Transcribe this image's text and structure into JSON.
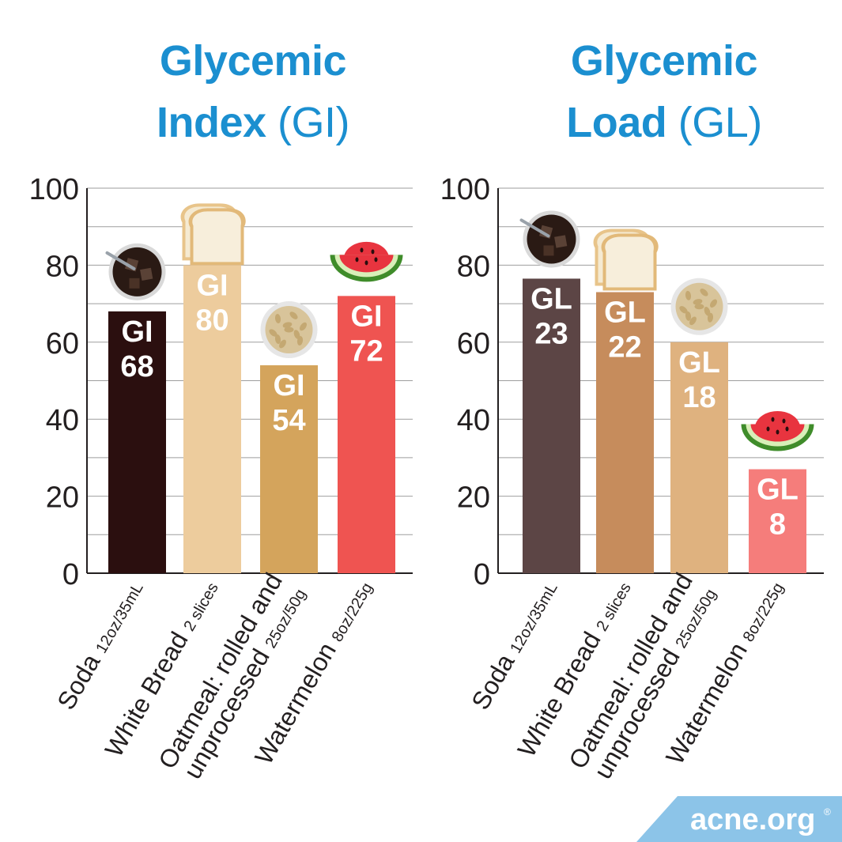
{
  "titles": {
    "left": {
      "bold": "Glycemic",
      "bold2": "Index",
      "light": "(GI)"
    },
    "right": {
      "bold": "Glycemic",
      "bold2": "Load",
      "light": "(GL)"
    }
  },
  "brand": {
    "text": "acne.org",
    "mark": "®",
    "color": "#8cc4e8"
  },
  "chart_data": [
    {
      "type": "bar",
      "title": "Glycemic Index (GI)",
      "ylim": [
        0,
        100
      ],
      "yticks": [
        0,
        20,
        40,
        60,
        80,
        100
      ],
      "grid": true,
      "bar_prefix": "GI",
      "categories": [
        {
          "name": "Soda",
          "serving": "12oz/35mL",
          "icon": "soda-glass-icon"
        },
        {
          "name": "White Bread",
          "serving": "2 slices",
          "icon": "bread-slices-icon"
        },
        {
          "name": "Oatmeal: rolled and",
          "name2": "unprocessed",
          "serving": "25oz/50g",
          "icon": "oatmeal-bowl-icon"
        },
        {
          "name": "Watermelon",
          "serving": "8oz/225g",
          "icon": "watermelon-slice-icon"
        }
      ],
      "values": [
        68,
        80,
        54,
        72
      ],
      "colors": [
        "#2b0f0f",
        "#edcc9d",
        "#d4a45c",
        "#ef5451"
      ]
    },
    {
      "type": "bar",
      "title": "Glycemic Load (GL)",
      "ylim": [
        0,
        100
      ],
      "yticks": [
        0,
        20,
        40,
        60,
        80,
        100
      ],
      "grid": true,
      "bar_prefix": "GL",
      "categories": [
        {
          "name": "Soda",
          "serving": "12oz/35mL",
          "icon": "soda-glass-icon"
        },
        {
          "name": "White Bread",
          "serving": "2 slices",
          "icon": "bread-slices-icon"
        },
        {
          "name": "Oatmeal: rolled and",
          "name2": "unprocessed",
          "serving": "25oz/50g",
          "icon": "oatmeal-bowl-icon"
        },
        {
          "name": "Watermelon",
          "serving": "8oz/225g",
          "icon": "watermelon-slice-icon"
        }
      ],
      "values": [
        23,
        22,
        18,
        8
      ],
      "bar_heights": [
        76.5,
        73,
        60,
        27
      ],
      "colors": [
        "#5c4545",
        "#c68c5c",
        "#dfb27f",
        "#f57d7b"
      ]
    }
  ]
}
